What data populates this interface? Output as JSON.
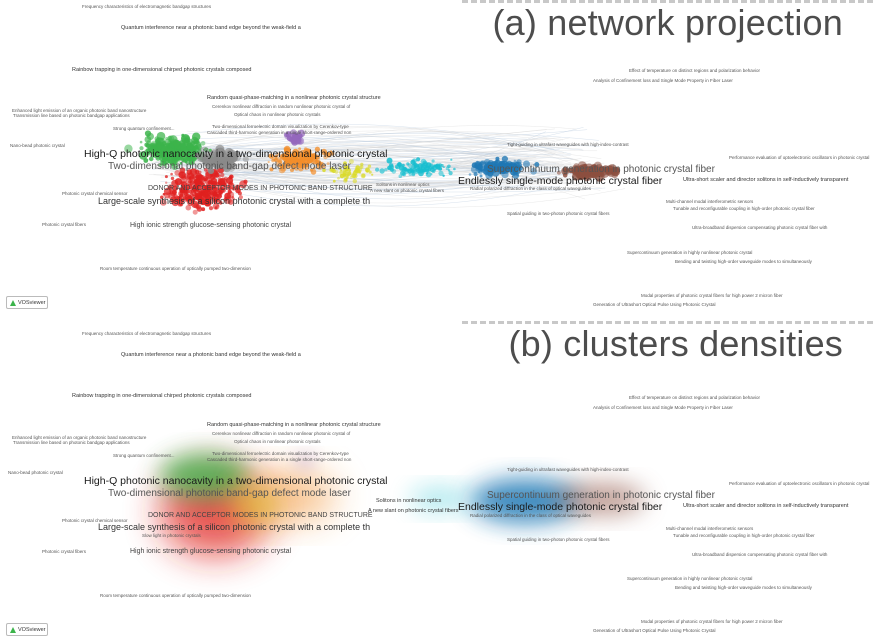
{
  "panels": [
    {
      "title": "(a) network projection"
    },
    {
      "title": "(b) clusters densities"
    }
  ],
  "badge": "VOSviewer",
  "labels": {
    "freq": "Frequency characteristics of electromagnetic bandgap structures",
    "quantum": "Quantum interference near a photonic band edge beyond the weak-field a",
    "rainbow": "Rainbow trapping in one-dimensional chirped photonic crystals composed",
    "random_qpm": "Random quasi-phase-matching in a nonlinear photonic crystal structure",
    "cerenkov": "Cerenkov nonlinear diffraction in random nonlinear photonic crystal of",
    "optical_chaos": "Optical chaos in nonlinear photonic crystals",
    "two_dim_ferro": "Two-dimensional ferroelectric domain visualization by Cerenkov-type",
    "cascaded": "Cascaded third-harmonic generation in a single short-range-ordered non",
    "enhanced_light": "Enhanced light emission of an organic photonic band nanostructure",
    "transmission": "Transmission line based on photonic bandgap applications",
    "strong_quantum": "Strong quantum confinement...",
    "nano_bead": "Nano-bead photonic crystal",
    "highq": "High-Q photonic nanocavity in a two-dimensional photonic crystal",
    "twodim_bandgap": "Two-dimensional photonic band-gap defect mode laser",
    "donor": "DONOR AND ACCEPTOR MODES IN PHOTONIC BAND STRUCTURE",
    "photonic_crystal_chem": "Photonic crystal chemical sensor",
    "large_scale": "Large-scale synthesis of a silicon photonic crystal with a complete th",
    "high_ionic": "High ionic strength glucose-sensing photonic crystal",
    "photonic_crystal_fibers": "Photonic crystal fibers",
    "slow_light": "Slow light in photonic crystals",
    "room_temp": "Room temperature continuous operation of optically pumped two-dimension",
    "effect_of_temp": "Effect of temperature on distinct regions and polarization behavior",
    "analysis": "Analysis of Confinement loss and Single Mode Property in Fiber Laser",
    "supercontinuum": "Supercontinuum generation in photonic crystal fiber",
    "endlessly": "Endlessly single-mode photonic crystal fiber",
    "solitons": "Solitons in nonlinear optics",
    "new_slant": "A new slant on photonic crystal fibers",
    "ultrashort": "Ultra-short scaler and director solitons in self-inductively transparent",
    "ultralow": "Ultralow-loss hollow-core photonic crystal fiber",
    "multichannel": "Multi-channel modal interferometric sensors",
    "tunable": "Tunable and reconfigurable coupling in high-order photonic crystal fiber",
    "ultra_broad": "Ultra-broadband dispersion compensating photonic crystal fiber with",
    "tight_guiding": "Tight-guiding in ultrafast waveguides with high-index-contrast",
    "perf_eval": "Performance evaluation of optoelectronic oscillators in photonic crystal",
    "supercont_gen": "Supercontinuum generation in highly nonlinear photonic crystal",
    "bending": "Bending and twisting high-order waveguide modes to simultaneously",
    "modal_props": "Modal properties of photonic crystal fibers for high power 2 micron fiber",
    "generation_ultra": "Generation of Ultrashort Optical Pulse Using Photonic Crystal",
    "spatial_guiding": "Spatial guiding in two-photon photonic crystal fibers",
    "radial_polarized": "Radial polarized diffraction in the class of optical waveguides"
  },
  "colors": {
    "red": "#e0201f",
    "green": "#3cb44b",
    "orange": "#f28e2b",
    "blue": "#1f77b4",
    "brown": "#8c4f3f",
    "purple": "#9467bd",
    "cyan": "#17becf",
    "yellow": "#dada2b"
  }
}
